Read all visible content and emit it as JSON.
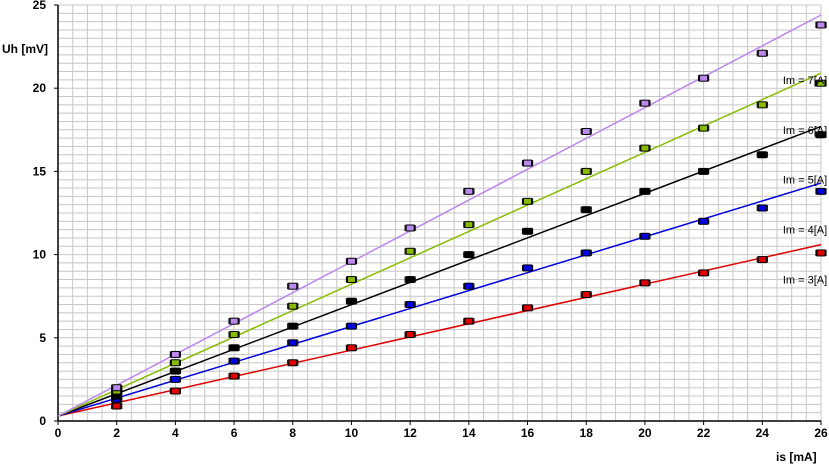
{
  "chart_data": {
    "type": "scatter",
    "title": "",
    "xlabel": "is [mA]",
    "ylabel": "Uh [mV]",
    "xlim": [
      0,
      26
    ],
    "ylim": [
      0,
      25
    ],
    "x_ticks": [
      0,
      2,
      4,
      6,
      8,
      10,
      12,
      14,
      16,
      18,
      20,
      22,
      24,
      26
    ],
    "y_ticks": [
      0,
      5,
      10,
      15,
      20,
      25
    ],
    "grid": true,
    "x_minor_step": 0.5,
    "y_minor_step": 0.5,
    "series": [
      {
        "name": "Im = 3[A]",
        "color": "#e00000",
        "x": [
          2,
          4,
          6,
          8,
          10,
          12,
          14,
          16,
          18,
          20,
          22,
          24,
          26
        ],
        "y": [
          0.9,
          1.8,
          2.7,
          3.5,
          4.4,
          5.2,
          6.0,
          6.8,
          7.6,
          8.3,
          8.9,
          9.7,
          10.1
        ],
        "fit": [
          0.3,
          10.6
        ]
      },
      {
        "name": "Im = 4[A]",
        "color": "#0000e0",
        "x": [
          2,
          4,
          6,
          8,
          10,
          12,
          14,
          16,
          18,
          20,
          22,
          24,
          26
        ],
        "y": [
          1.3,
          2.5,
          3.6,
          4.7,
          5.7,
          7.0,
          8.1,
          9.2,
          10.1,
          11.1,
          12.0,
          12.8,
          13.8
        ],
        "fit": [
          0.3,
          14.3
        ]
      },
      {
        "name": "Im = 5[A]",
        "color": "#000000",
        "x": [
          2,
          4,
          6,
          8,
          10,
          12,
          14,
          16,
          18,
          20,
          22,
          24,
          26
        ],
        "y": [
          1.5,
          3.0,
          4.4,
          5.7,
          7.2,
          8.5,
          10.0,
          11.4,
          12.7,
          13.8,
          15.0,
          16.0,
          17.2
        ],
        "fit": [
          0.3,
          17.7
        ]
      },
      {
        "name": "Im = 6[A]",
        "color": "#88bb00",
        "x": [
          2,
          4,
          6,
          8,
          10,
          12,
          14,
          16,
          18,
          20,
          22,
          24,
          26
        ],
        "y": [
          1.8,
          3.5,
          5.2,
          6.9,
          8.5,
          10.2,
          11.8,
          13.2,
          15.0,
          16.4,
          17.6,
          19.0,
          20.3
        ],
        "fit": [
          0.3,
          20.9
        ]
      },
      {
        "name": "Im = 7[A]",
        "color": "#bb88ee",
        "x": [
          2,
          4,
          6,
          8,
          10,
          12,
          14,
          16,
          18,
          20,
          22,
          24,
          26
        ],
        "y": [
          2.0,
          4.0,
          6.0,
          8.1,
          9.6,
          11.6,
          13.8,
          15.5,
          17.4,
          19.1,
          20.6,
          22.1,
          23.8
        ],
        "fit": [
          0.3,
          24.4
        ]
      }
    ],
    "annotations": [
      {
        "text": "Im = 7[A]",
        "series": 4,
        "x": 24.7,
        "y": 20.5
      },
      {
        "text": "Im = 6[A]",
        "series": 3,
        "x": 24.7,
        "y": 17.5
      },
      {
        "text": "Im = 5[A]",
        "series": 2,
        "x": 24.7,
        "y": 14.5
      },
      {
        "text": "Im = 4[A]",
        "series": 1,
        "x": 24.7,
        "y": 11.5
      },
      {
        "text": "Im = 3[A]",
        "series": 0,
        "x": 24.7,
        "y": 8.5
      }
    ]
  }
}
